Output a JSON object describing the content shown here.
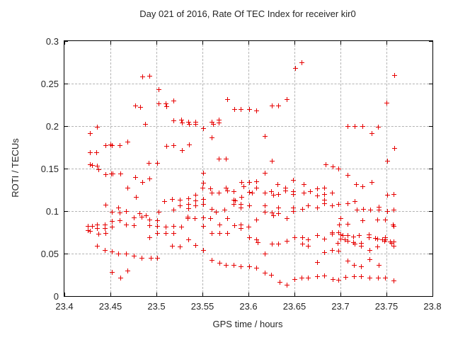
{
  "title": "Day 021 of 2016, Rate Of TEC Index for receiver kir0",
  "colors": {
    "marker": "#e60000",
    "grid": "#b3b3b3",
    "border": "#000000",
    "text": "#262626",
    "background": "#ffffff"
  },
  "chart_data": {
    "type": "scatter",
    "title": "Day 021 of 2016, Rate Of TEC Index for receiver kir0",
    "xlabel": "GPS time / hours",
    "ylabel": "ROTI / TECUs",
    "xlim": [
      23.4,
      23.8
    ],
    "ylim": [
      0,
      0.3
    ],
    "grid": true,
    "legend": "none",
    "marker": "plus",
    "x_ticks": [
      {
        "value": 23.4,
        "label": "23.4"
      },
      {
        "value": 23.45,
        "label": "23.45"
      },
      {
        "value": 23.5,
        "label": "23.5"
      },
      {
        "value": 23.55,
        "label": "23.55"
      },
      {
        "value": 23.6,
        "label": "23.6"
      },
      {
        "value": 23.65,
        "label": "23.65"
      },
      {
        "value": 23.7,
        "label": "23.7"
      },
      {
        "value": 23.75,
        "label": "23.75"
      },
      {
        "value": 23.8,
        "label": "23.8"
      }
    ],
    "y_ticks": [
      {
        "value": 0,
        "label": "0"
      },
      {
        "value": 0.05,
        "label": "0.05"
      },
      {
        "value": 0.1,
        "label": "0.1"
      },
      {
        "value": 0.15,
        "label": "0.15"
      },
      {
        "value": 0.2,
        "label": "0.2"
      },
      {
        "value": 0.25,
        "label": "0.25"
      },
      {
        "value": 0.3,
        "label": "0.3"
      }
    ],
    "points": [
      [
        23.485,
        0.258
      ],
      [
        23.493,
        0.259
      ],
      [
        23.477,
        0.224
      ],
      [
        23.483,
        0.222
      ],
      [
        23.436,
        0.199
      ],
      [
        23.428,
        0.191
      ],
      [
        23.445,
        0.177
      ],
      [
        23.45,
        0.178
      ],
      [
        23.452,
        0.177
      ],
      [
        23.46,
        0.177
      ],
      [
        23.469,
        0.181
      ],
      [
        23.428,
        0.169
      ],
      [
        23.435,
        0.169
      ],
      [
        23.428,
        0.155
      ],
      [
        23.43,
        0.154
      ],
      [
        23.436,
        0.153
      ],
      [
        23.437,
        0.149
      ],
      [
        23.445,
        0.143
      ],
      [
        23.451,
        0.144
      ],
      [
        23.453,
        0.144
      ],
      [
        23.461,
        0.144
      ],
      [
        23.469,
        0.127
      ],
      [
        23.477,
        0.14
      ],
      [
        23.485,
        0.134
      ],
      [
        23.492,
        0.156
      ],
      [
        23.478,
        0.116
      ],
      [
        23.445,
        0.107
      ],
      [
        23.452,
        0.099
      ],
      [
        23.459,
        0.104
      ],
      [
        23.46,
        0.098
      ],
      [
        23.467,
        0.1
      ],
      [
        23.482,
        0.097
      ],
      [
        23.489,
        0.095
      ],
      [
        23.452,
        0.088
      ],
      [
        23.46,
        0.089
      ],
      [
        23.467,
        0.084
      ],
      [
        23.476,
        0.092
      ],
      [
        23.476,
        0.083
      ],
      [
        23.484,
        0.093
      ],
      [
        23.426,
        0.082
      ],
      [
        23.43,
        0.082
      ],
      [
        23.426,
        0.077
      ],
      [
        23.428,
        0.076
      ],
      [
        23.436,
        0.084
      ],
      [
        23.436,
        0.08
      ],
      [
        23.444,
        0.084
      ],
      [
        23.444,
        0.08
      ],
      [
        23.437,
        0.073
      ],
      [
        23.445,
        0.074
      ],
      [
        23.452,
        0.081
      ],
      [
        23.436,
        0.059
      ],
      [
        23.444,
        0.054
      ],
      [
        23.452,
        0.052
      ],
      [
        23.459,
        0.05
      ],
      [
        23.467,
        0.05
      ],
      [
        23.476,
        0.047
      ],
      [
        23.484,
        0.045
      ],
      [
        23.452,
        0.028
      ],
      [
        23.461,
        0.021
      ],
      [
        23.469,
        0.03
      ],
      [
        23.488,
        0.202
      ],
      [
        23.503,
        0.243
      ],
      [
        23.503,
        0.226
      ],
      [
        23.51,
        0.226
      ],
      [
        23.511,
        0.223
      ],
      [
        23.519,
        0.23
      ],
      [
        23.519,
        0.206
      ],
      [
        23.527,
        0.207
      ],
      [
        23.528,
        0.204
      ],
      [
        23.535,
        0.205
      ],
      [
        23.536,
        0.202
      ],
      [
        23.543,
        0.205
      ],
      [
        23.543,
        0.202
      ],
      [
        23.551,
        0.197
      ],
      [
        23.56,
        0.205
      ],
      [
        23.562,
        0.202
      ],
      [
        23.568,
        0.207
      ],
      [
        23.568,
        0.204
      ],
      [
        23.577,
        0.231
      ],
      [
        23.585,
        0.22
      ],
      [
        23.592,
        0.22
      ],
      [
        23.601,
        0.22
      ],
      [
        23.609,
        0.218
      ],
      [
        23.618,
        0.188
      ],
      [
        23.626,
        0.224
      ],
      [
        23.633,
        0.224
      ],
      [
        23.642,
        0.231
      ],
      [
        23.651,
        0.268
      ],
      [
        23.658,
        0.275
      ],
      [
        23.56,
        0.186
      ],
      [
        23.511,
        0.176
      ],
      [
        23.519,
        0.177
      ],
      [
        23.528,
        0.171
      ],
      [
        23.536,
        0.178
      ],
      [
        23.568,
        0.161
      ],
      [
        23.576,
        0.161
      ],
      [
        23.501,
        0.156
      ],
      [
        23.493,
        0.138
      ],
      [
        23.551,
        0.145
      ],
      [
        23.551,
        0.133
      ],
      [
        23.55,
        0.127
      ],
      [
        23.559,
        0.126
      ],
      [
        23.56,
        0.121
      ],
      [
        23.568,
        0.121
      ],
      [
        23.576,
        0.127
      ],
      [
        23.577,
        0.124
      ],
      [
        23.584,
        0.123
      ],
      [
        23.593,
        0.134
      ],
      [
        23.595,
        0.129
      ],
      [
        23.584,
        0.113
      ],
      [
        23.586,
        0.112
      ],
      [
        23.584,
        0.108
      ],
      [
        23.592,
        0.108
      ],
      [
        23.509,
        0.111
      ],
      [
        23.517,
        0.114
      ],
      [
        23.526,
        0.113
      ],
      [
        23.526,
        0.106
      ],
      [
        23.535,
        0.115
      ],
      [
        23.535,
        0.108
      ],
      [
        23.535,
        0.103
      ],
      [
        23.543,
        0.119
      ],
      [
        23.543,
        0.112
      ],
      [
        23.543,
        0.106
      ],
      [
        23.551,
        0.114
      ],
      [
        23.551,
        0.108
      ],
      [
        23.519,
        0.101
      ],
      [
        23.503,
        0.099
      ],
      [
        23.593,
        0.116
      ],
      [
        23.592,
        0.104
      ],
      [
        23.56,
        0.102
      ],
      [
        23.574,
        0.101
      ],
      [
        23.565,
        0.099
      ],
      [
        23.618,
        0.145
      ],
      [
        23.601,
        0.134
      ],
      [
        23.609,
        0.135
      ],
      [
        23.609,
        0.127
      ],
      [
        23.601,
        0.122
      ],
      [
        23.604,
        0.121
      ],
      [
        23.632,
        0.131
      ],
      [
        23.64,
        0.127
      ],
      [
        23.64,
        0.124
      ],
      [
        23.618,
        0.121
      ],
      [
        23.625,
        0.123
      ],
      [
        23.627,
        0.119
      ],
      [
        23.633,
        0.12
      ],
      [
        23.649,
        0.136
      ],
      [
        23.649,
        0.123
      ],
      [
        23.649,
        0.12
      ],
      [
        23.66,
        0.131
      ],
      [
        23.66,
        0.121
      ],
      [
        23.667,
        0.123
      ],
      [
        23.675,
        0.126
      ],
      [
        23.675,
        0.118
      ],
      [
        23.683,
        0.127
      ],
      [
        23.683,
        0.12
      ],
      [
        23.691,
        0.121
      ],
      [
        23.683,
        0.113
      ],
      [
        23.626,
        0.159
      ],
      [
        23.684,
        0.155
      ],
      [
        23.692,
        0.152
      ],
      [
        23.698,
        0.15
      ],
      [
        23.601,
        0.106
      ],
      [
        23.618,
        0.106
      ],
      [
        23.618,
        0.099
      ],
      [
        23.626,
        0.098
      ],
      [
        23.633,
        0.104
      ],
      [
        23.633,
        0.097
      ],
      [
        23.627,
        0.095
      ],
      [
        23.649,
        0.104
      ],
      [
        23.649,
        0.1
      ],
      [
        23.659,
        0.102
      ],
      [
        23.665,
        0.106
      ],
      [
        23.675,
        0.104
      ],
      [
        23.683,
        0.109
      ],
      [
        23.691,
        0.106
      ],
      [
        23.698,
        0.108
      ],
      [
        23.759,
        0.26
      ],
      [
        23.75,
        0.227
      ],
      [
        23.734,
        0.191
      ],
      [
        23.759,
        0.174
      ],
      [
        23.751,
        0.159
      ],
      [
        23.708,
        0.142
      ],
      [
        23.717,
        0.131
      ],
      [
        23.724,
        0.129
      ],
      [
        23.734,
        0.134
      ],
      [
        23.751,
        0.119
      ],
      [
        23.758,
        0.12
      ],
      [
        23.708,
        0.2
      ],
      [
        23.716,
        0.2
      ],
      [
        23.724,
        0.2
      ],
      [
        23.741,
        0.199
      ],
      [
        23.708,
        0.109
      ],
      [
        23.716,
        0.111
      ],
      [
        23.718,
        0.101
      ],
      [
        23.725,
        0.102
      ],
      [
        23.733,
        0.101
      ],
      [
        23.742,
        0.105
      ],
      [
        23.742,
        0.101
      ],
      [
        23.751,
        0.1
      ],
      [
        23.758,
        0.101
      ],
      [
        23.7,
        0.091
      ],
      [
        23.708,
        0.085
      ],
      [
        23.699,
        0.084
      ],
      [
        23.724,
        0.089
      ],
      [
        23.74,
        0.09
      ],
      [
        23.749,
        0.09
      ],
      [
        23.757,
        0.084
      ],
      [
        23.758,
        0.082
      ],
      [
        23.698,
        0.075
      ],
      [
        23.7,
        0.072
      ],
      [
        23.703,
        0.071
      ],
      [
        23.708,
        0.071
      ],
      [
        23.714,
        0.07
      ],
      [
        23.72,
        0.071
      ],
      [
        23.731,
        0.072
      ],
      [
        23.731,
        0.069
      ],
      [
        23.738,
        0.068
      ],
      [
        23.746,
        0.066
      ],
      [
        23.748,
        0.065
      ],
      [
        23.7,
        0.067
      ],
      [
        23.705,
        0.066
      ],
      [
        23.708,
        0.065
      ],
      [
        23.714,
        0.063
      ],
      [
        23.716,
        0.061
      ],
      [
        23.723,
        0.062
      ],
      [
        23.723,
        0.059
      ],
      [
        23.732,
        0.054
      ],
      [
        23.74,
        0.067
      ],
      [
        23.74,
        0.058
      ],
      [
        23.749,
        0.069
      ],
      [
        23.749,
        0.066
      ],
      [
        23.754,
        0.064
      ],
      [
        23.756,
        0.062
      ],
      [
        23.758,
        0.064
      ],
      [
        23.758,
        0.059
      ],
      [
        23.697,
        0.062
      ],
      [
        23.698,
        0.053
      ],
      [
        23.708,
        0.041
      ],
      [
        23.715,
        0.036
      ],
      [
        23.723,
        0.035
      ],
      [
        23.732,
        0.043
      ],
      [
        23.742,
        0.036
      ],
      [
        23.706,
        0.022
      ],
      [
        23.715,
        0.023
      ],
      [
        23.723,
        0.023
      ],
      [
        23.732,
        0.021
      ],
      [
        23.741,
        0.021
      ],
      [
        23.749,
        0.021
      ],
      [
        23.758,
        0.018
      ],
      [
        23.609,
        0.09
      ],
      [
        23.642,
        0.091
      ],
      [
        23.6,
        0.081
      ],
      [
        23.601,
        0.069
      ],
      [
        23.609,
        0.066
      ],
      [
        23.61,
        0.063
      ],
      [
        23.626,
        0.061
      ],
      [
        23.633,
        0.061
      ],
      [
        23.642,
        0.065
      ],
      [
        23.65,
        0.069
      ],
      [
        23.659,
        0.069
      ],
      [
        23.659,
        0.061
      ],
      [
        23.665,
        0.066
      ],
      [
        23.665,
        0.059
      ],
      [
        23.675,
        0.071
      ],
      [
        23.683,
        0.067
      ],
      [
        23.691,
        0.075
      ],
      [
        23.691,
        0.073
      ],
      [
        23.618,
        0.05
      ],
      [
        23.683,
        0.051
      ],
      [
        23.691,
        0.054
      ],
      [
        23.675,
        0.04
      ],
      [
        23.494,
        0.045
      ],
      [
        23.501,
        0.045
      ],
      [
        23.56,
        0.042
      ],
      [
        23.569,
        0.039
      ],
      [
        23.576,
        0.036
      ],
      [
        23.584,
        0.036
      ],
      [
        23.592,
        0.035
      ],
      [
        23.601,
        0.035
      ],
      [
        23.609,
        0.033
      ],
      [
        23.618,
        0.027
      ],
      [
        23.625,
        0.025
      ],
      [
        23.634,
        0.016
      ],
      [
        23.642,
        0.013
      ],
      [
        23.65,
        0.02
      ],
      [
        23.658,
        0.021
      ],
      [
        23.665,
        0.021
      ],
      [
        23.675,
        0.023
      ],
      [
        23.683,
        0.024
      ],
      [
        23.692,
        0.02
      ],
      [
        23.698,
        0.019
      ],
      [
        23.493,
        0.09
      ],
      [
        23.493,
        0.083
      ],
      [
        23.501,
        0.089
      ],
      [
        23.501,
        0.082
      ],
      [
        23.501,
        0.074
      ],
      [
        23.493,
        0.069
      ],
      [
        23.51,
        0.081
      ],
      [
        23.51,
        0.074
      ],
      [
        23.519,
        0.082
      ],
      [
        23.519,
        0.074
      ],
      [
        23.527,
        0.081
      ],
      [
        23.517,
        0.059
      ],
      [
        23.526,
        0.058
      ],
      [
        23.535,
        0.066
      ],
      [
        23.543,
        0.06
      ],
      [
        23.534,
        0.093
      ],
      [
        23.534,
        0.091
      ],
      [
        23.542,
        0.091
      ],
      [
        23.551,
        0.092
      ],
      [
        23.551,
        0.082
      ],
      [
        23.551,
        0.054
      ],
      [
        23.559,
        0.091
      ],
      [
        23.56,
        0.074
      ],
      [
        23.569,
        0.084
      ],
      [
        23.569,
        0.074
      ],
      [
        23.577,
        0.091
      ],
      [
        23.577,
        0.074
      ],
      [
        23.585,
        0.083
      ],
      [
        23.592,
        0.084
      ],
      [
        23.592,
        0.08
      ]
    ]
  }
}
